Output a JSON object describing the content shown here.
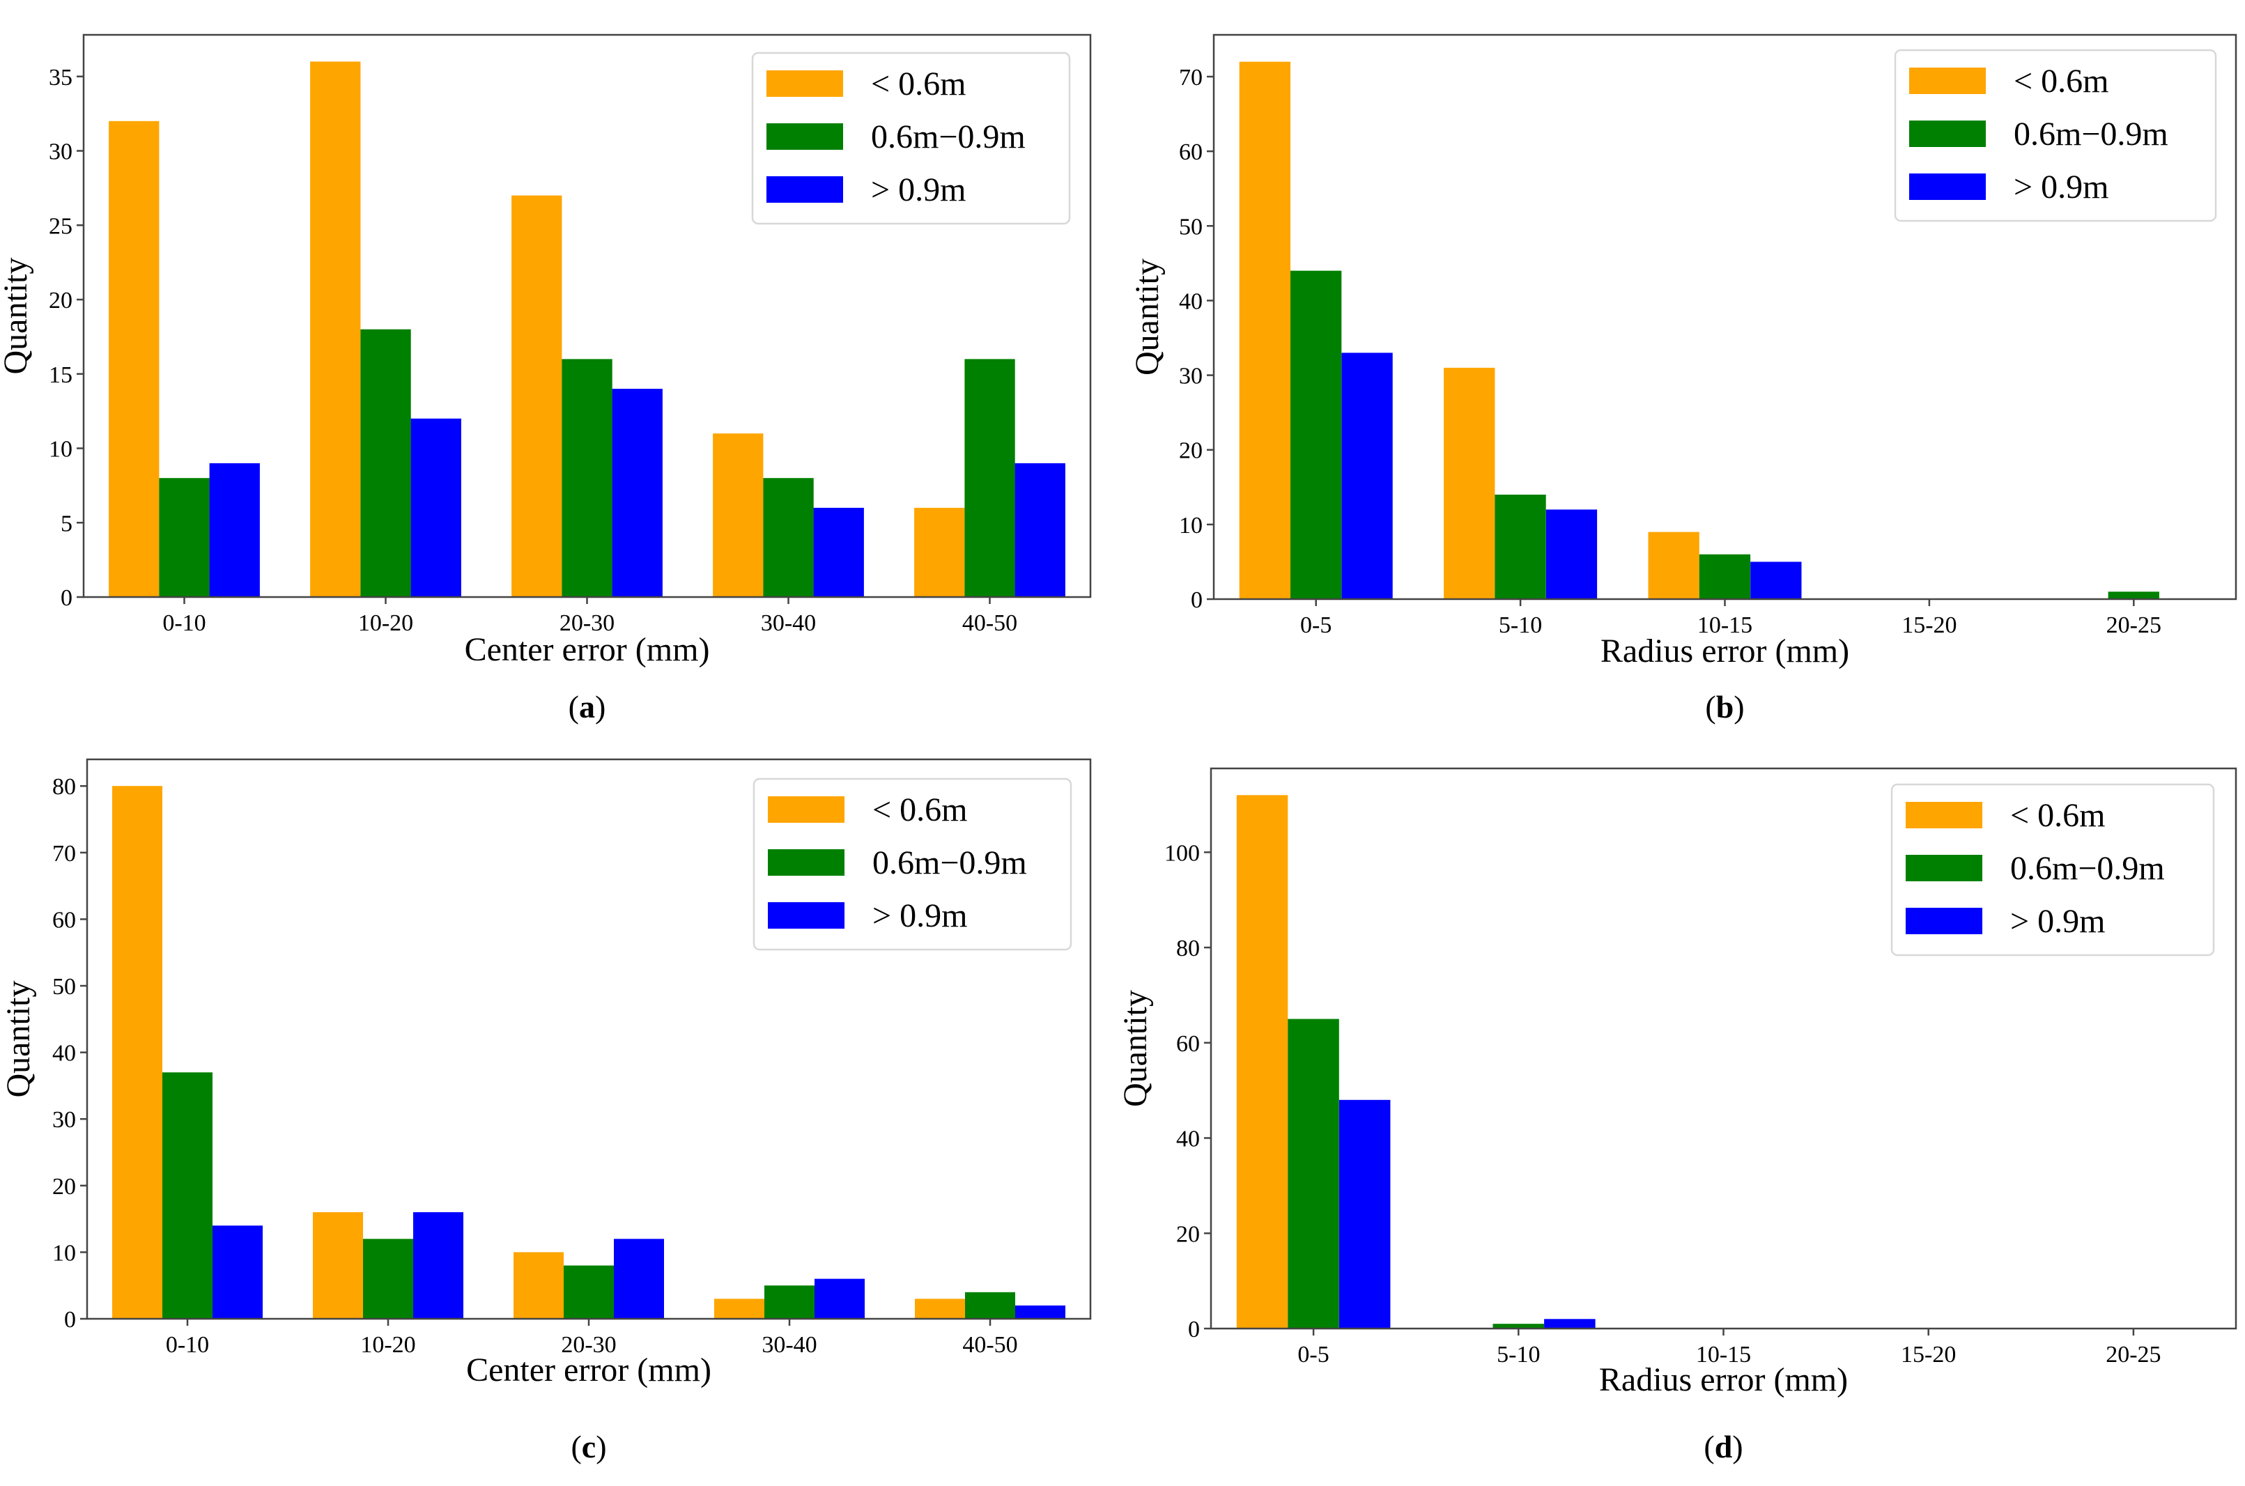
{
  "legend": [
    "< 0.6m",
    "0.6m−0.9m",
    "> 0.9m"
  ],
  "colors": [
    "#FFA500",
    "#008000",
    "#0000FF"
  ],
  "chart_data": [
    {
      "type": "bar",
      "panel": "a",
      "caption_letter": "a",
      "categories": [
        "0-10",
        "10-20",
        "20-30",
        "30-40",
        "40-50"
      ],
      "series": [
        {
          "name": "< 0.6m",
          "values": [
            32,
            36,
            27,
            11,
            6
          ]
        },
        {
          "name": "0.6m−0.9m",
          "values": [
            8,
            18,
            16,
            8,
            16
          ]
        },
        {
          "name": "> 0.9m",
          "values": [
            9,
            12,
            14,
            6,
            9
          ]
        }
      ],
      "xlabel": "Center error (mm)",
      "ylabel": "Quantity",
      "ylim": [
        0,
        37.8
      ],
      "yticks": [
        0,
        5,
        10,
        15,
        20,
        25,
        30,
        35
      ],
      "legend_position": "top-right"
    },
    {
      "type": "bar",
      "panel": "b",
      "caption_letter": "b",
      "categories": [
        "0-5",
        "5-10",
        "10-15",
        "15-20",
        "20-25"
      ],
      "series": [
        {
          "name": "< 0.6m",
          "values": [
            72,
            31,
            9,
            0,
            0
          ]
        },
        {
          "name": "0.6m−0.9m",
          "values": [
            44,
            14,
            6,
            0,
            1
          ]
        },
        {
          "name": "> 0.9m",
          "values": [
            33,
            12,
            5,
            0,
            0
          ]
        }
      ],
      "xlabel": "Radius error (mm)",
      "ylabel": "Quantity",
      "ylim": [
        0,
        75.6
      ],
      "yticks": [
        0,
        10,
        20,
        30,
        40,
        50,
        60,
        70
      ],
      "legend_position": "top-right"
    },
    {
      "type": "bar",
      "panel": "c",
      "caption_letter": "c",
      "categories": [
        "0-10",
        "10-20",
        "20-30",
        "30-40",
        "40-50"
      ],
      "series": [
        {
          "name": "< 0.6m",
          "values": [
            80,
            16,
            10,
            3,
            3
          ]
        },
        {
          "name": "0.6m−0.9m",
          "values": [
            37,
            12,
            8,
            5,
            4
          ]
        },
        {
          "name": "> 0.9m",
          "values": [
            14,
            16,
            12,
            6,
            2
          ]
        }
      ],
      "xlabel": "Center error (mm)",
      "ylabel": "Quantity",
      "ylim": [
        0,
        84
      ],
      "yticks": [
        0,
        10,
        20,
        30,
        40,
        50,
        60,
        70,
        80
      ],
      "legend_position": "top-right"
    },
    {
      "type": "bar",
      "panel": "d",
      "caption_letter": "d",
      "categories": [
        "0-5",
        "5-10",
        "10-15",
        "15-20",
        "20-25"
      ],
      "series": [
        {
          "name": "< 0.6m",
          "values": [
            112,
            0,
            0,
            0,
            0
          ]
        },
        {
          "name": "0.6m−0.9m",
          "values": [
            65,
            1,
            0,
            0,
            0
          ]
        },
        {
          "name": "> 0.9m",
          "values": [
            48,
            2,
            0,
            0,
            0
          ]
        }
      ],
      "xlabel": "Radius error (mm)",
      "ylabel": "Quantity",
      "ylim": [
        0,
        117.6
      ],
      "yticks": [
        0,
        20,
        40,
        60,
        80,
        100
      ],
      "legend_position": "top-right"
    }
  ]
}
